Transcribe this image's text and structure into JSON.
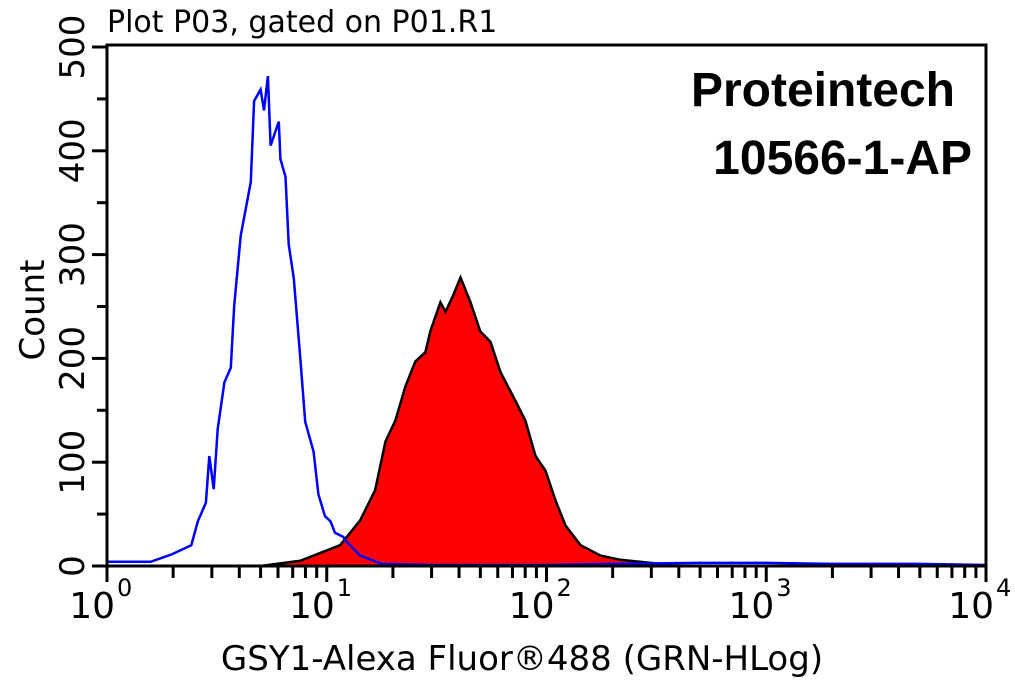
{
  "chart_data": {
    "type": "area",
    "title": "Plot P03, gated on P01.R1",
    "xlabel": "GSY1-Alexa Fluor®488 (GRN-HLog)",
    "ylabel": "Count",
    "x_scale": "log",
    "xlim": [
      1,
      10000
    ],
    "ylim": [
      0,
      500
    ],
    "x_ticks": [
      {
        "base": "10",
        "exp": "0"
      },
      {
        "base": "10",
        "exp": "1"
      },
      {
        "base": "10",
        "exp": "2"
      },
      {
        "base": "10",
        "exp": "3"
      },
      {
        "base": "10",
        "exp": "4"
      }
    ],
    "y_ticks": [
      "0",
      "100",
      "200",
      "300",
      "400",
      "500"
    ],
    "grid": false,
    "series": [
      {
        "style": "outline",
        "color": "#0000ff",
        "x": [
          1,
          1.58,
          1.96,
          2.42,
          2.59,
          2.82,
          2.92,
          3.06,
          3.19,
          3.42,
          3.66,
          3.79,
          4.06,
          4.51,
          4.67,
          5.0,
          5.18,
          5.4,
          5.55,
          6.05,
          6.15,
          6.49,
          6.71,
          7.08,
          7.59,
          7.98,
          8.71,
          9.16,
          9.82,
          10.4,
          10.9,
          11.9,
          12.1,
          14.2,
          17.8,
          30,
          60,
          100,
          200,
          500,
          1000,
          2000,
          5000,
          10000
        ],
        "y": [
          4,
          4,
          11,
          20,
          43,
          61,
          106,
          74,
          132,
          177,
          191,
          251,
          318,
          370,
          448,
          459,
          439,
          472,
          405,
          428,
          392,
          375,
          310,
          277,
          199,
          139,
          110,
          69,
          48,
          43,
          32,
          28,
          25,
          10,
          2,
          1,
          1,
          1,
          2,
          3,
          3,
          2,
          2,
          1
        ]
      },
      {
        "style": "filled",
        "color": "#ff0000",
        "outline": "#000000",
        "x": [
          5.0,
          7.57,
          11.5,
          14.2,
          16.6,
          18.5,
          20.5,
          22.8,
          25.3,
          28.1,
          29.6,
          32.9,
          34.7,
          37.3,
          40.6,
          45.1,
          50.0,
          55.6,
          61.7,
          72.3,
          80.2,
          89.1,
          98.9,
          110,
          122,
          143,
          176,
          217,
          298,
          400
        ],
        "y": [
          0,
          5,
          20,
          44,
          73,
          120,
          140,
          173,
          197,
          206,
          226,
          254,
          245,
          259,
          278,
          254,
          226,
          216,
          187,
          159,
          140,
          106,
          92,
          63,
          39,
          20,
          10,
          6,
          3,
          0
        ]
      }
    ],
    "annotations": [
      "Proteintech",
      "10566-1-AP"
    ]
  }
}
